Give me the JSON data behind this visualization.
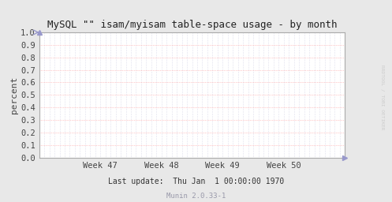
{
  "title": "MySQL \"\" isam/myisam table-space usage - by month",
  "ylabel": "percent",
  "ylim": [
    0.0,
    1.0
  ],
  "yticks": [
    0.0,
    0.1,
    0.2,
    0.3,
    0.4,
    0.5,
    0.6,
    0.7,
    0.8,
    0.9,
    1.0
  ],
  "xtick_labels": [
    "Week 47",
    "Week 48",
    "Week 49",
    "Week 50"
  ],
  "background_color": "#e8e8e8",
  "plot_bg_color": "#ffffff",
  "hgrid_color": "#ff9999",
  "vgrid_color": "#aaaacc",
  "title_fontsize": 9,
  "axis_fontsize": 8,
  "tick_fontsize": 7.5,
  "footer_text": "Last update:  Thu Jan  1 00:00:00 1970",
  "footer_text2": "Munin 2.0.33-1",
  "watermark": "RRDTOOL / TOBI OETIKER",
  "watermark_color": "#cccccc",
  "arrow_color": "#9999cc",
  "num_weeks": 5,
  "xtick_positions": [
    1,
    2,
    3,
    4
  ],
  "num_vgrid_lines": 60
}
